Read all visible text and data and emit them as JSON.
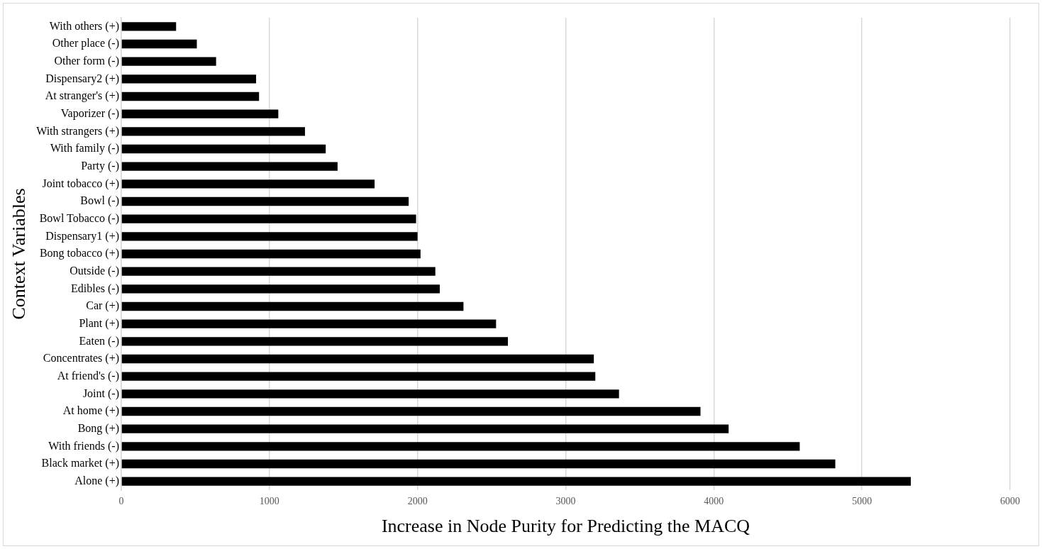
{
  "chart_data": {
    "type": "bar",
    "orientation": "horizontal",
    "xlabel": "Increase in Node Purity for Predicting the MACQ",
    "ylabel": "Context Variables",
    "categories": [
      "With others (+)",
      "Other place (-)",
      "Other form (-)",
      "Dispensary2 (+)",
      "At stranger's (+)",
      "Vaporizer (-)",
      "With strangers (+)",
      "With family (-)",
      "Party (-)",
      "Joint tobacco (+)",
      "Bowl (-)",
      "Bowl Tobacco (-)",
      "Dispensary1 (+)",
      "Bong tobacco (+)",
      "Outside (-)",
      "Edibles (-)",
      "Car (+)",
      "Plant (+)",
      "Eaten (-)",
      "Concentrates (+)",
      "At friend's (-)",
      "Joint (-)",
      "At home (+)",
      "Bong (+)",
      "With friends (-)",
      "Black market (+)",
      "Alone (+)"
    ],
    "values": [
      370,
      510,
      640,
      910,
      930,
      1060,
      1240,
      1380,
      1460,
      1710,
      1940,
      1990,
      2000,
      2020,
      2120,
      2150,
      2310,
      2530,
      2610,
      3190,
      3200,
      3360,
      3910,
      4100,
      4580,
      4820,
      5330
    ],
    "color": "#000000",
    "xlim": [
      0,
      6000
    ],
    "xticks": [
      0,
      1000,
      2000,
      3000,
      4000,
      5000,
      6000
    ],
    "grid": "x",
    "legend": false
  }
}
